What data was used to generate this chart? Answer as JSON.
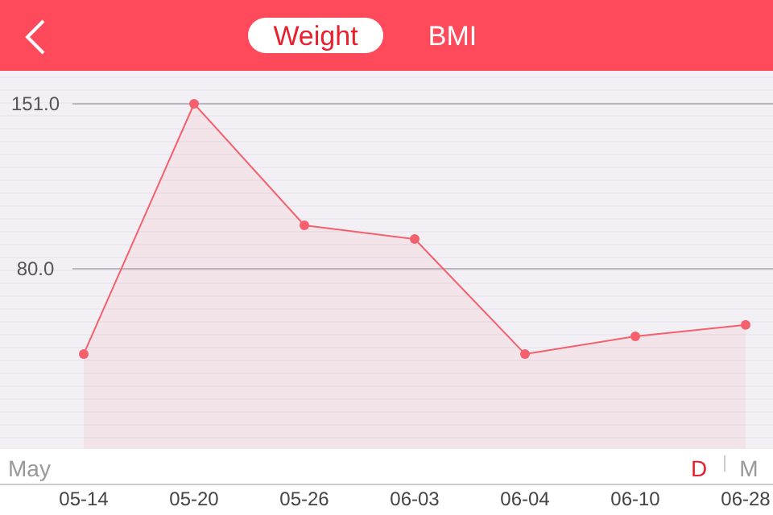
{
  "chart_data": {
    "type": "area",
    "categories": [
      "05-14",
      "05-20",
      "05-26",
      "06-03",
      "06-04",
      "06-10",
      "06-28"
    ],
    "series": [
      {
        "color": "#f4606c",
        "values": [
          43.3,
          151,
          98.7,
          92.8,
          43.3,
          50.9,
          55.8
        ]
      }
    ],
    "ylim": [
      2.4,
      165.2
    ],
    "yticks": [
      {
        "value": 80,
        "label": "80.0"
      },
      {
        "value": 151,
        "label": "151.0"
      }
    ],
    "grid": "y",
    "marker": "circle",
    "line_style": "solid",
    "annotations": [
      "Weight",
      "BMI",
      "May",
      "D",
      "M"
    ]
  }
}
